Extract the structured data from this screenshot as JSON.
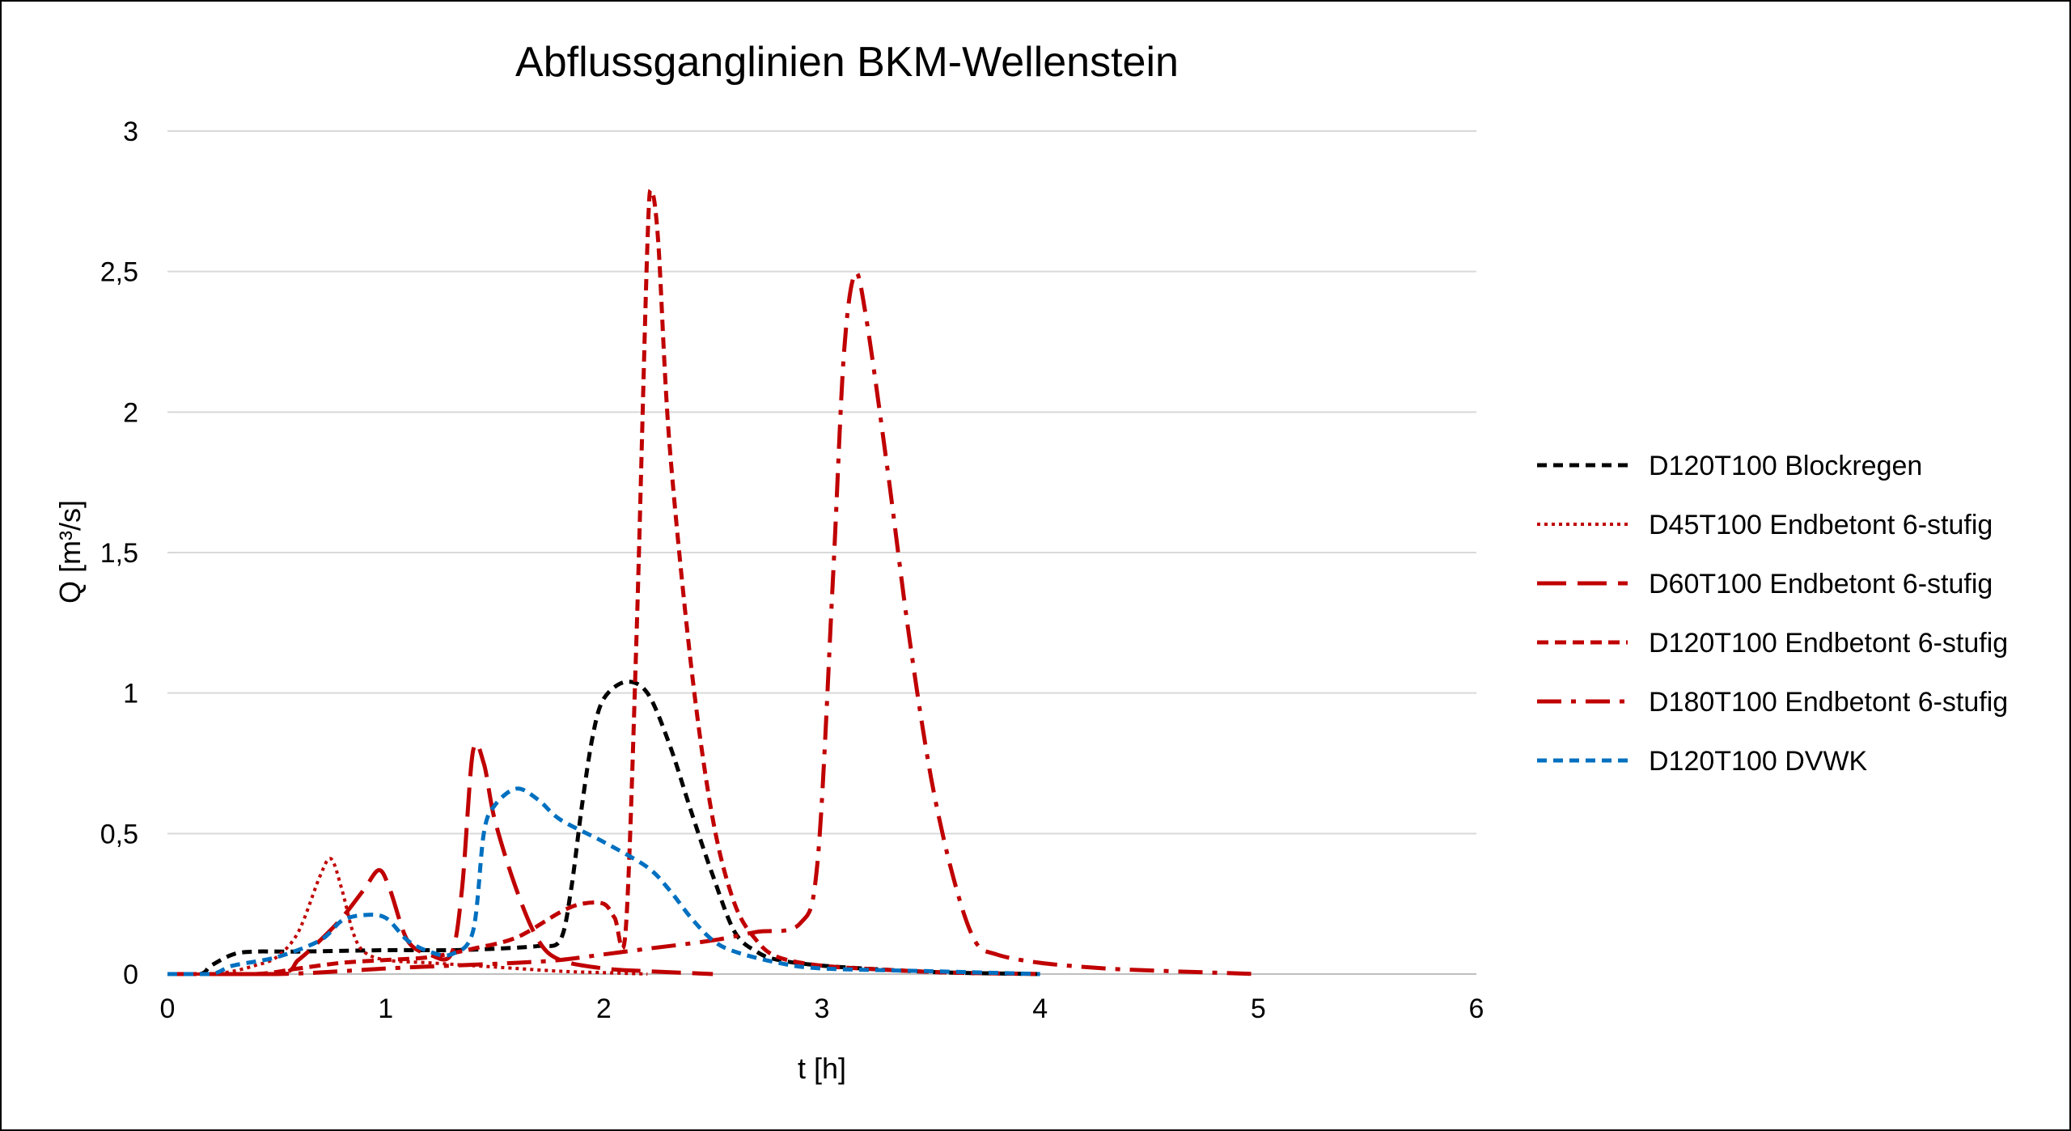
{
  "chart_data": {
    "type": "line",
    "title": "Abflussganglinien BKM-Wellenstein",
    "xlabel": "t [h]",
    "ylabel": "Q [m³/s]",
    "xlim": [
      0,
      6
    ],
    "ylim": [
      0,
      3
    ],
    "x_ticks": [
      "0",
      "1",
      "2",
      "3",
      "4",
      "5",
      "6"
    ],
    "y_ticks": [
      "0",
      "0,5",
      "1",
      "1,5",
      "2",
      "2,5",
      "3"
    ],
    "grid": "horizontal",
    "legend_position": "right",
    "series": [
      {
        "name": "D120T100 Blockregen",
        "color": "#000000",
        "dash": "short-dash",
        "points": [
          [
            0,
            0
          ],
          [
            0.15,
            0
          ],
          [
            0.2,
            0.03
          ],
          [
            0.3,
            0.07
          ],
          [
            0.4,
            0.08
          ],
          [
            0.6,
            0.08
          ],
          [
            1.0,
            0.085
          ],
          [
            1.3,
            0.085
          ],
          [
            1.5,
            0.09
          ],
          [
            1.7,
            0.1
          ],
          [
            1.8,
            0.12
          ],
          [
            1.85,
            0.3
          ],
          [
            1.9,
            0.6
          ],
          [
            1.95,
            0.85
          ],
          [
            2.0,
            0.98
          ],
          [
            2.1,
            1.04
          ],
          [
            2.2,
            1.0
          ],
          [
            2.3,
            0.82
          ],
          [
            2.4,
            0.58
          ],
          [
            2.5,
            0.35
          ],
          [
            2.6,
            0.15
          ],
          [
            2.7,
            0.08
          ],
          [
            2.8,
            0.05
          ],
          [
            3.0,
            0.03
          ],
          [
            3.3,
            0.015
          ],
          [
            3.6,
            0.005
          ],
          [
            4.0,
            0
          ]
        ]
      },
      {
        "name": "D45T100 Endbetont 6-stufig",
        "color": "#C00000",
        "dash": "dot",
        "points": [
          [
            0,
            0
          ],
          [
            0.2,
            0
          ],
          [
            0.3,
            0.01
          ],
          [
            0.4,
            0.03
          ],
          [
            0.5,
            0.06
          ],
          [
            0.6,
            0.15
          ],
          [
            0.7,
            0.35
          ],
          [
            0.75,
            0.41
          ],
          [
            0.8,
            0.3
          ],
          [
            0.85,
            0.15
          ],
          [
            0.9,
            0.08
          ],
          [
            1.0,
            0.05
          ],
          [
            1.2,
            0.04
          ],
          [
            1.4,
            0.03
          ],
          [
            1.6,
            0.02
          ],
          [
            1.8,
            0.01
          ],
          [
            2.0,
            0.005
          ],
          [
            2.2,
            0
          ]
        ]
      },
      {
        "name": "D60T100 Endbetont 6-stufig",
        "color": "#C00000",
        "dash": "long-dash",
        "points": [
          [
            0,
            0
          ],
          [
            0.5,
            0
          ],
          [
            0.6,
            0.05
          ],
          [
            0.7,
            0.12
          ],
          [
            0.8,
            0.2
          ],
          [
            0.9,
            0.3
          ],
          [
            0.97,
            0.37
          ],
          [
            1.02,
            0.3
          ],
          [
            1.1,
            0.12
          ],
          [
            1.2,
            0.07
          ],
          [
            1.3,
            0.07
          ],
          [
            1.35,
            0.3
          ],
          [
            1.4,
            0.79
          ],
          [
            1.45,
            0.75
          ],
          [
            1.5,
            0.55
          ],
          [
            1.6,
            0.3
          ],
          [
            1.7,
            0.12
          ],
          [
            1.8,
            0.05
          ],
          [
            2.0,
            0.02
          ],
          [
            2.2,
            0.01
          ],
          [
            2.5,
            0
          ]
        ]
      },
      {
        "name": "D120T100 Endbetont 6-stufig",
        "color": "#C00000",
        "dash": "dash",
        "points": [
          [
            0,
            0
          ],
          [
            0.4,
            0
          ],
          [
            0.6,
            0.02
          ],
          [
            0.8,
            0.04
          ],
          [
            1.0,
            0.05
          ],
          [
            1.2,
            0.06
          ],
          [
            1.4,
            0.09
          ],
          [
            1.6,
            0.13
          ],
          [
            1.8,
            0.22
          ],
          [
            1.9,
            0.25
          ],
          [
            2.0,
            0.25
          ],
          [
            2.05,
            0.2
          ],
          [
            2.1,
            0.15
          ],
          [
            2.15,
            1.2
          ],
          [
            2.2,
            2.6
          ],
          [
            2.22,
            2.78
          ],
          [
            2.25,
            2.6
          ],
          [
            2.3,
            1.9
          ],
          [
            2.4,
            1.1
          ],
          [
            2.5,
            0.55
          ],
          [
            2.6,
            0.25
          ],
          [
            2.7,
            0.12
          ],
          [
            2.8,
            0.06
          ],
          [
            3.0,
            0.03
          ],
          [
            3.3,
            0.015
          ],
          [
            3.6,
            0.005
          ],
          [
            4.0,
            0
          ]
        ]
      },
      {
        "name": "D180T100 Endbetont 6-stufig",
        "color": "#C00000",
        "dash": "dash-dot",
        "points": [
          [
            0,
            0
          ],
          [
            0.5,
            0
          ],
          [
            0.8,
            0.01
          ],
          [
            1.0,
            0.02
          ],
          [
            1.3,
            0.03
          ],
          [
            1.6,
            0.04
          ],
          [
            1.8,
            0.05
          ],
          [
            2.0,
            0.07
          ],
          [
            2.2,
            0.09
          ],
          [
            2.5,
            0.12
          ],
          [
            2.7,
            0.15
          ],
          [
            2.9,
            0.18
          ],
          [
            2.98,
            0.4
          ],
          [
            3.05,
            1.4
          ],
          [
            3.1,
            2.2
          ],
          [
            3.15,
            2.49
          ],
          [
            3.2,
            2.35
          ],
          [
            3.3,
            1.8
          ],
          [
            3.4,
            1.2
          ],
          [
            3.5,
            0.7
          ],
          [
            3.6,
            0.35
          ],
          [
            3.7,
            0.12
          ],
          [
            3.8,
            0.07
          ],
          [
            4.0,
            0.04
          ],
          [
            4.3,
            0.02
          ],
          [
            4.6,
            0.01
          ],
          [
            5.0,
            0
          ]
        ]
      },
      {
        "name": "D120T100 DVWK",
        "color": "#0070C0",
        "dash": "short-dash",
        "points": [
          [
            0,
            0
          ],
          [
            0.2,
            0
          ],
          [
            0.3,
            0.03
          ],
          [
            0.5,
            0.06
          ],
          [
            0.7,
            0.12
          ],
          [
            0.8,
            0.19
          ],
          [
            0.9,
            0.21
          ],
          [
            1.0,
            0.2
          ],
          [
            1.1,
            0.12
          ],
          [
            1.2,
            0.08
          ],
          [
            1.3,
            0.07
          ],
          [
            1.4,
            0.15
          ],
          [
            1.45,
            0.5
          ],
          [
            1.5,
            0.6
          ],
          [
            1.6,
            0.66
          ],
          [
            1.7,
            0.62
          ],
          [
            1.8,
            0.55
          ],
          [
            2.0,
            0.47
          ],
          [
            2.2,
            0.38
          ],
          [
            2.3,
            0.3
          ],
          [
            2.4,
            0.2
          ],
          [
            2.5,
            0.12
          ],
          [
            2.6,
            0.08
          ],
          [
            2.8,
            0.04
          ],
          [
            3.0,
            0.02
          ],
          [
            3.5,
            0.01
          ],
          [
            4.0,
            0
          ]
        ]
      }
    ]
  }
}
